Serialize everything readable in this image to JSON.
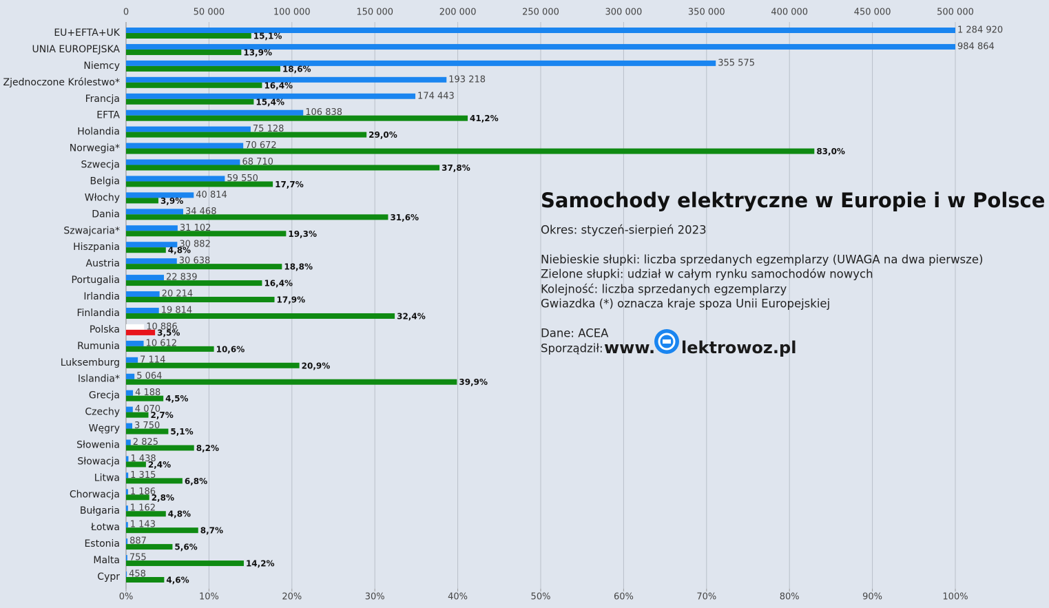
{
  "chart_data": {
    "type": "bar",
    "orientation": "horizontal",
    "title": "Samochody elektryczne w Europie i w Polsce",
    "subtitle": "Okres: styczeń-sierpień 2023",
    "notes": [
      "Niebieskie słupki: liczba sprzedanych egzemplarzy (UWAGA na dwa pierwsze)",
      "Zielone słupki: udział w całym rynku samochodów nowych",
      "Kolejność: liczba sprzedanych egzemplarzy",
      "Gwiazdka (*) oznacza kraje spoza Unii Europejskiej"
    ],
    "source": "Dane: ACEA",
    "author": "Sporządził:",
    "logo_prefix": "www.",
    "logo_suffix": "lektrowoz.pl",
    "categories": [
      "EU+EFTA+UK",
      "UNIA EUROPEJSKA",
      "Niemcy",
      "Zjednoczone Królestwo*",
      "Francja",
      "EFTA",
      "Holandia",
      "Norwegia*",
      "Szwecja",
      "Belgia",
      "Włochy",
      "Dania",
      "Szwajcaria*",
      "Hiszpania",
      "Austria",
      "Portugalia",
      "Irlandia",
      "Finlandia",
      "Polska",
      "Rumunia",
      "Luksemburg",
      "Islandia*",
      "Grecja",
      "Czechy",
      "Węgry",
      "Słowenia",
      "Słowacja",
      "Litwa",
      "Chorwacja",
      "Bułgaria",
      "Łotwa",
      "Estonia",
      "Malta",
      "Cypr"
    ],
    "series": [
      {
        "color": "#1a85f0",
        "axis": "x",
        "values": [
          1284920,
          984864,
          355575,
          193218,
          174443,
          106838,
          75128,
          70672,
          68710,
          59550,
          40814,
          34468,
          31102,
          30882,
          30638,
          22839,
          20214,
          19814,
          10886,
          10612,
          7114,
          5064,
          4188,
          4070,
          3750,
          2825,
          1438,
          1315,
          1186,
          1162,
          1143,
          887,
          755,
          458
        ],
        "value_labels": [
          "1 284 920",
          "984 864",
          "355 575",
          "193 218",
          "174 443",
          "106 838",
          "75 128",
          "70 672",
          "68 710",
          "59 550",
          "40 814",
          "34 468",
          "31 102",
          "30 882",
          "30 638",
          "22 839",
          "20 214",
          "19 814",
          "10 886",
          "10 612",
          "7 114",
          "5 064",
          "4 188",
          "4 070",
          "3 750",
          "2 825",
          "1 438",
          "1 315",
          "1 186",
          "1 162",
          "1 143",
          "887",
          "755",
          "458"
        ]
      },
      {
        "color": "#0f8a12",
        "axis": "x2",
        "values": [
          15.1,
          13.9,
          18.6,
          16.4,
          15.4,
          41.2,
          29.0,
          83.0,
          37.8,
          17.7,
          3.9,
          31.6,
          19.3,
          4.8,
          18.8,
          16.4,
          17.9,
          32.4,
          3.5,
          10.6,
          20.9,
          39.9,
          4.5,
          2.7,
          5.1,
          8.2,
          2.4,
          6.8,
          2.8,
          4.8,
          8.7,
          5.6,
          14.2,
          4.6
        ],
        "value_labels": [
          "15,1%",
          "13,9%",
          "18,6%",
          "16,4%",
          "15,4%",
          "41,2%",
          "29,0%",
          "83,0%",
          "37,8%",
          "17,7%",
          "3,9%",
          "31,6%",
          "19,3%",
          "4,8%",
          "18,8%",
          "16,4%",
          "17,9%",
          "32,4%",
          "3,5%",
          "10,6%",
          "20,9%",
          "39,9%",
          "4,5%",
          "2,7%",
          "5,1%",
          "8,2%",
          "2,4%",
          "6,8%",
          "2,8%",
          "4,8%",
          "8,7%",
          "5,6%",
          "14,2%",
          "4,6%"
        ]
      }
    ],
    "highlight": {
      "index": 18,
      "colors": [
        "#ffffff",
        "#e8141b"
      ]
    },
    "xlim": [
      0,
      500000
    ],
    "xticks": [
      0,
      {
        "value": 50000,
        "label": "50 000"
      },
      {
        "value": 100000,
        "label": "100 000"
      },
      {
        "value": 150000,
        "label": "150 000"
      },
      {
        "value": 200000,
        "label": "200 000"
      },
      {
        "value": 250000,
        "label": "250 000"
      },
      {
        "value": 300000,
        "label": "300 000"
      },
      {
        "value": 350000,
        "label": "350 000"
      },
      {
        "value": 400000,
        "label": "400 000"
      },
      {
        "value": 450000,
        "label": "450 000"
      },
      {
        "value": 500000,
        "label": "500 000"
      }
    ],
    "x2lim": [
      0,
      100
    ],
    "x2ticks": [
      {
        "value": 0,
        "label": "0%"
      },
      {
        "value": 10,
        "label": "10%"
      },
      {
        "value": 20,
        "label": "20%"
      },
      {
        "value": 30,
        "label": "30%"
      },
      {
        "value": 40,
        "label": "40%"
      },
      {
        "value": 50,
        "label": "50%"
      },
      {
        "value": 60,
        "label": "60%"
      },
      {
        "value": 70,
        "label": "70%"
      },
      {
        "value": 80,
        "label": "80%"
      },
      {
        "value": 90,
        "label": "90%"
      },
      {
        "value": 100,
        "label": "100%"
      }
    ],
    "grid": true
  }
}
